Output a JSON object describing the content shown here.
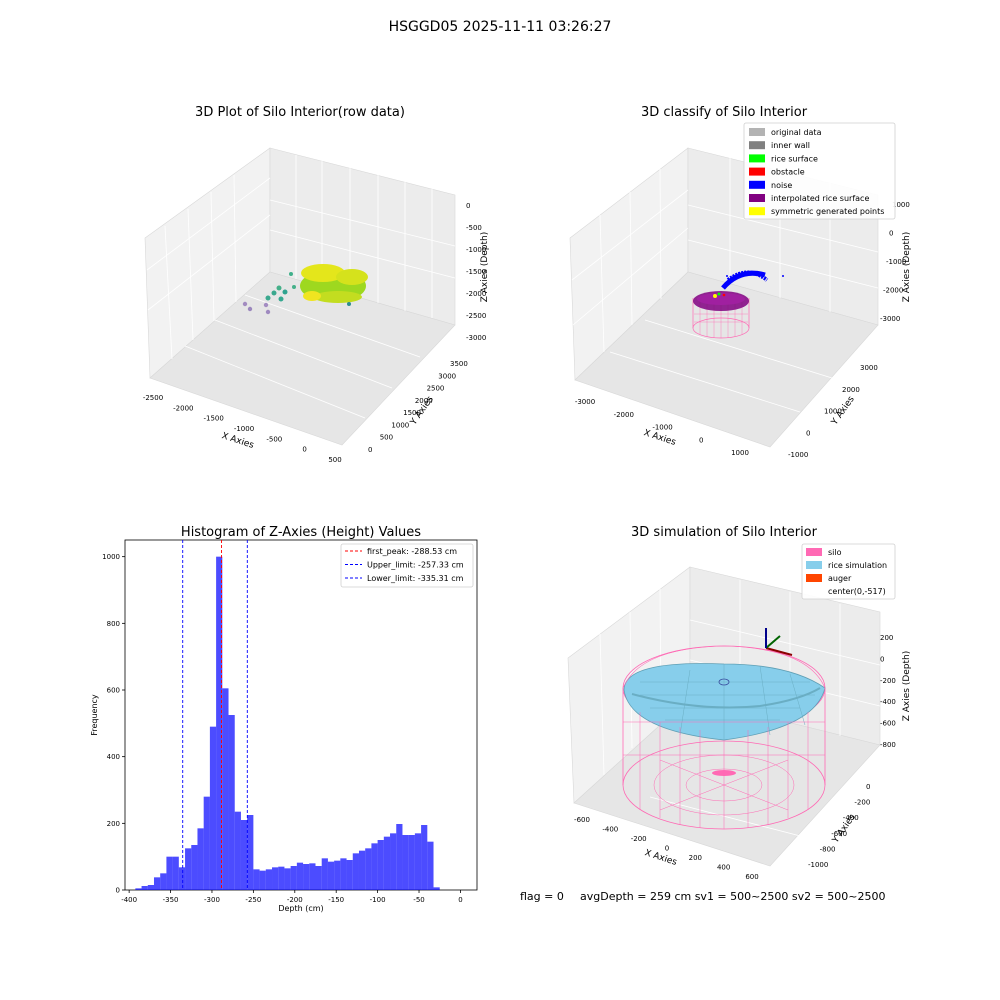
{
  "figure": {
    "suptitle": "HSGGD05 2025-11-11 03:26:27",
    "footer": {
      "flag": "flag = 0",
      "stats": "avgDepth = 259 cm  sv1 = 500~2500  sv2 = 500~2500"
    }
  },
  "panels": {
    "raw": {
      "title": "3D Plot of Silo Interior(row data)",
      "xlabel": "X Axies",
      "ylabel": "Y Axies",
      "zlabel": "Z Axies (Depth)",
      "xticks": [
        "-2500",
        "-2000",
        "-1500",
        "-1000",
        "-500",
        "0",
        "500"
      ],
      "yticks": [
        "0",
        "500",
        "1000",
        "1500",
        "2000",
        "2500",
        "3000",
        "3500"
      ],
      "zticks": [
        "0",
        "-500",
        "-1000",
        "-1500",
        "-2000",
        "-2500",
        "-3000"
      ]
    },
    "classify": {
      "title": "3D classify of Silo Interior",
      "xlabel": "X Axies",
      "ylabel": "Y Axies",
      "zlabel": "Z Axies (Depth)",
      "xticks": [
        "-3000",
        "-2000",
        "-1000",
        "0",
        "1000"
      ],
      "yticks": [
        "-1000",
        "0",
        "1000",
        "2000",
        "3000"
      ],
      "zticks": [
        "1000",
        "0",
        "-1000",
        "-2000",
        "-3000"
      ],
      "legend": [
        {
          "label": "original data",
          "color": "#b3b3b3"
        },
        {
          "label": "inner wall",
          "color": "#808080"
        },
        {
          "label": "rice surface",
          "color": "#00ff00"
        },
        {
          "label": "obstacle",
          "color": "#ff0000"
        },
        {
          "label": "noise",
          "color": "#0000ff"
        },
        {
          "label": "interpolated rice surface",
          "color": "#800080"
        },
        {
          "label": "symmetric generated points",
          "color": "#ffff00"
        }
      ]
    },
    "simulation": {
      "title": "3D simulation of Silo Interior",
      "xlabel": "X Axies",
      "ylabel": "Y Axies",
      "zlabel": "Z Axies (Depth)",
      "xticks": [
        "-600",
        "-400",
        "-200",
        "0",
        "200",
        "400",
        "600"
      ],
      "yticks": [
        "-1000",
        "-800",
        "-600",
        "-400",
        "-200",
        "0"
      ],
      "zticks": [
        "200",
        "0",
        "-200",
        "-400",
        "-600",
        "-800"
      ],
      "legend": [
        {
          "label": "silo",
          "color": "#ff69b4"
        },
        {
          "label": "rice simulation",
          "color": "#87ceeb"
        },
        {
          "label": "auger",
          "color": "#ff4500"
        },
        {
          "label": "center(0,-517)",
          "color": ""
        }
      ]
    }
  },
  "chart_data": {
    "type": "bar",
    "title": "Histogram of Z-Axies (Height) Values",
    "xlabel": "Depth (cm)",
    "ylabel": "Frequency",
    "xlim": [
      -405,
      20
    ],
    "ylim": [
      0,
      1050
    ],
    "xticks": [
      -400,
      -350,
      -300,
      -250,
      -200,
      -150,
      -100,
      -50,
      0
    ],
    "yticks": [
      0,
      200,
      400,
      600,
      800,
      1000
    ],
    "bin_width": 7.5,
    "bins": [
      {
        "x0": -392.5,
        "v": 5
      },
      {
        "x0": -385,
        "v": 12
      },
      {
        "x0": -377.5,
        "v": 15
      },
      {
        "x0": -370,
        "v": 38
      },
      {
        "x0": -362.5,
        "v": 50
      },
      {
        "x0": -355,
        "v": 100
      },
      {
        "x0": -347.5,
        "v": 100
      },
      {
        "x0": -340,
        "v": 68
      },
      {
        "x0": -332.5,
        "v": 125
      },
      {
        "x0": -325,
        "v": 135
      },
      {
        "x0": -317.5,
        "v": 185
      },
      {
        "x0": -310,
        "v": 280
      },
      {
        "x0": -302.5,
        "v": 490
      },
      {
        "x0": -295,
        "v": 1000
      },
      {
        "x0": -287.5,
        "v": 605
      },
      {
        "x0": -280,
        "v": 525
      },
      {
        "x0": -272.5,
        "v": 235
      },
      {
        "x0": -265,
        "v": 210
      },
      {
        "x0": -257.5,
        "v": 225
      },
      {
        "x0": -250,
        "v": 62
      },
      {
        "x0": -242.5,
        "v": 58
      },
      {
        "x0": -235,
        "v": 62
      },
      {
        "x0": -227.5,
        "v": 68
      },
      {
        "x0": -220,
        "v": 70
      },
      {
        "x0": -212.5,
        "v": 65
      },
      {
        "x0": -205,
        "v": 72
      },
      {
        "x0": -197.5,
        "v": 82
      },
      {
        "x0": -190,
        "v": 78
      },
      {
        "x0": -182.5,
        "v": 80
      },
      {
        "x0": -175,
        "v": 72
      },
      {
        "x0": -167.5,
        "v": 95
      },
      {
        "x0": -160,
        "v": 85
      },
      {
        "x0": -152.5,
        "v": 88
      },
      {
        "x0": -145,
        "v": 95
      },
      {
        "x0": -137.5,
        "v": 90
      },
      {
        "x0": -130,
        "v": 110
      },
      {
        "x0": -122.5,
        "v": 118
      },
      {
        "x0": -115,
        "v": 125
      },
      {
        "x0": -107.5,
        "v": 140
      },
      {
        "x0": -100,
        "v": 150
      },
      {
        "x0": -92.5,
        "v": 160
      },
      {
        "x0": -85,
        "v": 170
      },
      {
        "x0": -77.5,
        "v": 198
      },
      {
        "x0": -70,
        "v": 165
      },
      {
        "x0": -62.5,
        "v": 165
      },
      {
        "x0": -55,
        "v": 170
      },
      {
        "x0": -47.5,
        "v": 195
      },
      {
        "x0": -40,
        "v": 145
      },
      {
        "x0": -32.5,
        "v": 8
      }
    ],
    "bar_color": "#0000ff",
    "lines": [
      {
        "label": "first_peak: -288.53 cm",
        "x": -288.53,
        "color": "#ff0000"
      },
      {
        "label": "Upper_limit: -257.33 cm",
        "x": -257.33,
        "color": "#0000ff"
      },
      {
        "label": "Lower_limit: -335.31 cm",
        "x": -335.31,
        "color": "#0000ff"
      }
    ],
    "legend_position": "top-right"
  }
}
